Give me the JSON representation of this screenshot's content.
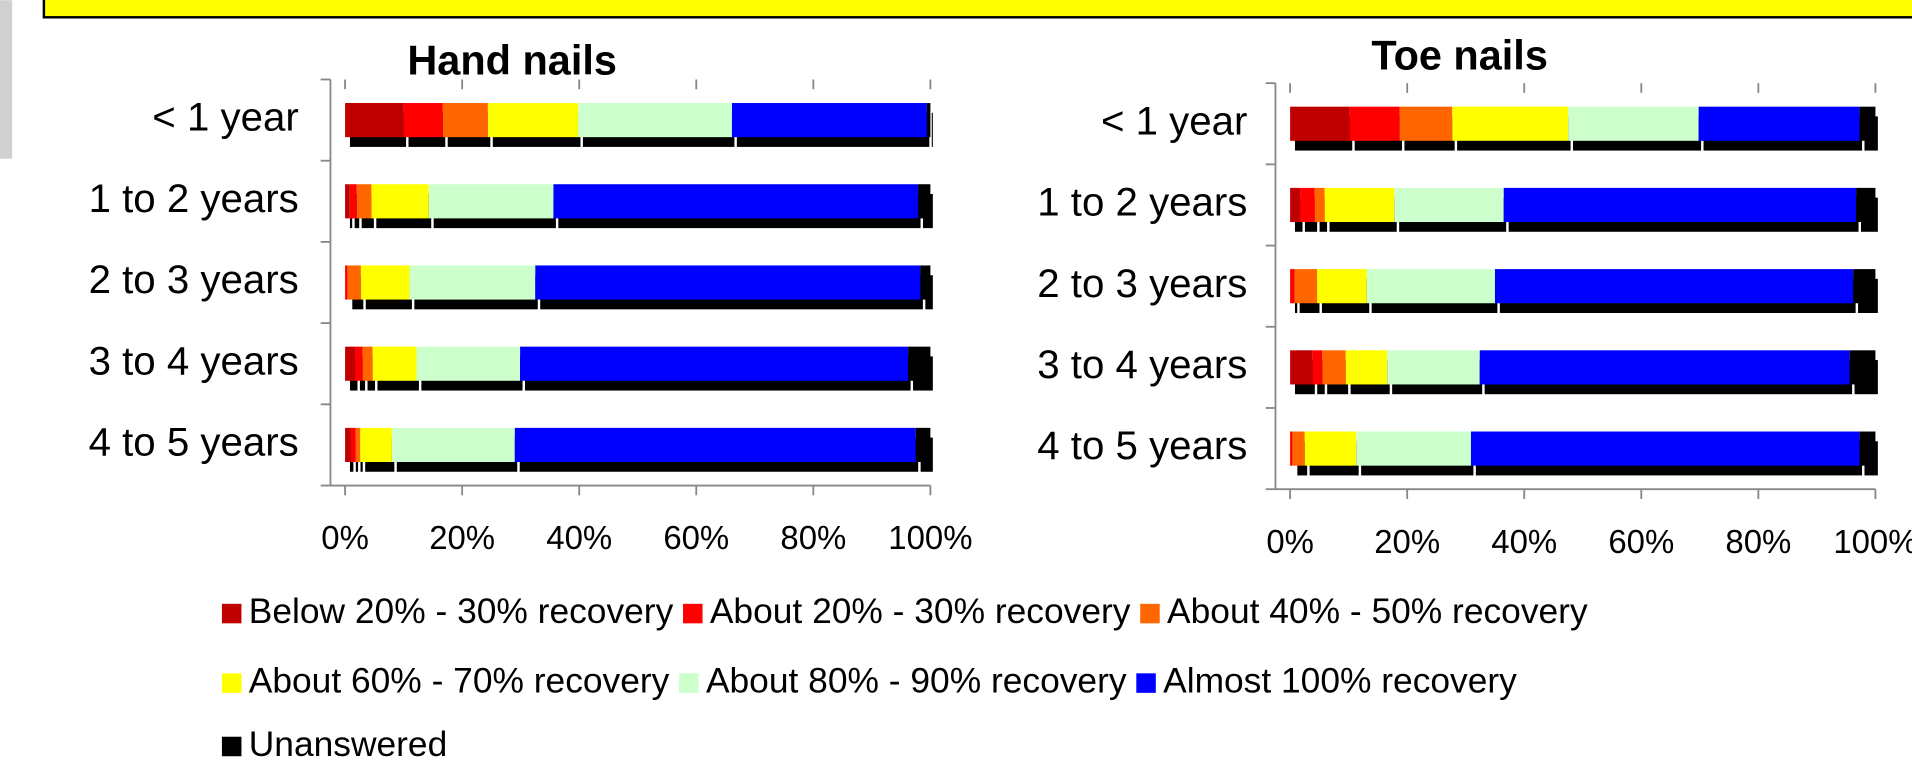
{
  "chart_data": [
    {
      "type": "bar",
      "orientation": "horizontal",
      "title": "Hand nails",
      "categories": [
        "< 1 year",
        "1 to 2 years",
        "2 to 3 years",
        "3 to 4 years",
        "4 to 5 years"
      ],
      "xlim": [
        0,
        100
      ],
      "xticks": [
        {
          "value": 0,
          "label": "0%"
        },
        {
          "value": 20,
          "label": "20%"
        },
        {
          "value": 40,
          "label": "40%"
        },
        {
          "value": 60,
          "label": "60%"
        },
        {
          "value": 80,
          "label": "80%"
        },
        {
          "value": 100,
          "label": "100%"
        }
      ],
      "stacked": true,
      "legend": "bottom",
      "series": [
        {
          "name": "Below 20% - 30% recovery",
          "color": "#c00000",
          "values": [
            10,
            0.8,
            0,
            1.7,
            1
          ]
        },
        {
          "name": "About 20% - 30% recovery",
          "color": "#ff0000",
          "values": [
            6.7,
            1.2,
            0.4,
            1.3,
            0.8
          ]
        },
        {
          "name": "About 40% - 50% recovery",
          "color": "#ff6600",
          "values": [
            7.7,
            2.5,
            2.3,
            1.7,
            0.8
          ]
        },
        {
          "name": "About 60% - 70% recovery",
          "color": "#ffff00",
          "values": [
            15.4,
            9.8,
            8.3,
            7.5,
            5.4
          ]
        },
        {
          "name": "About 80% - 90% recovery",
          "color": "#ccffcc",
          "values": [
            26.3,
            21.3,
            21.5,
            17.7,
            21
          ]
        },
        {
          "name": "Almost 100% recovery",
          "color": "#0000ff",
          "values": [
            33.3,
            62.3,
            65.8,
            66.3,
            68.5
          ]
        },
        {
          "name": "Unanswered",
          "color": "#000000",
          "values": [
            0.6,
            2.1,
            1.7,
            3.8,
            2.5
          ]
        }
      ]
    },
    {
      "type": "bar",
      "orientation": "horizontal",
      "title": "Toe nails",
      "categories": [
        "< 1 year",
        "1 to 2 years",
        "2 to 3 years",
        "3 to 4 years",
        "4 to 5 years"
      ],
      "xlim": [
        0,
        100
      ],
      "xticks": [
        {
          "value": 0,
          "label": "0%"
        },
        {
          "value": 20,
          "label": "20%"
        },
        {
          "value": 40,
          "label": "40%"
        },
        {
          "value": 60,
          "label": "60%"
        },
        {
          "value": 80,
          "label": "80%"
        },
        {
          "value": 100,
          "label": "100%"
        }
      ],
      "stacked": true,
      "series": [
        {
          "color": "#c00000",
          "values": [
            10.2,
            1.7,
            0,
            3.8,
            0
          ]
        },
        {
          "color": "#ff0000",
          "values": [
            8.5,
            2.5,
            0.8,
            1.7,
            0.4
          ]
        },
        {
          "color": "#ff6600",
          "values": [
            9,
            1.7,
            3.8,
            4,
            2.1
          ]
        },
        {
          "color": "#ffff00",
          "values": [
            19.8,
            11.9,
            8.5,
            7.1,
            8.8
          ]
        },
        {
          "color": "#ccffcc",
          "values": [
            22.3,
            18.7,
            21.9,
            15.8,
            19.6
          ]
        },
        {
          "color": "#0000ff",
          "values": [
            27.5,
            60.2,
            61.2,
            63.2,
            66.4
          ]
        },
        {
          "color": "#000000",
          "values": [
            2.7,
            3.3,
            3.8,
            4.4,
            2.7
          ]
        }
      ]
    }
  ]
}
